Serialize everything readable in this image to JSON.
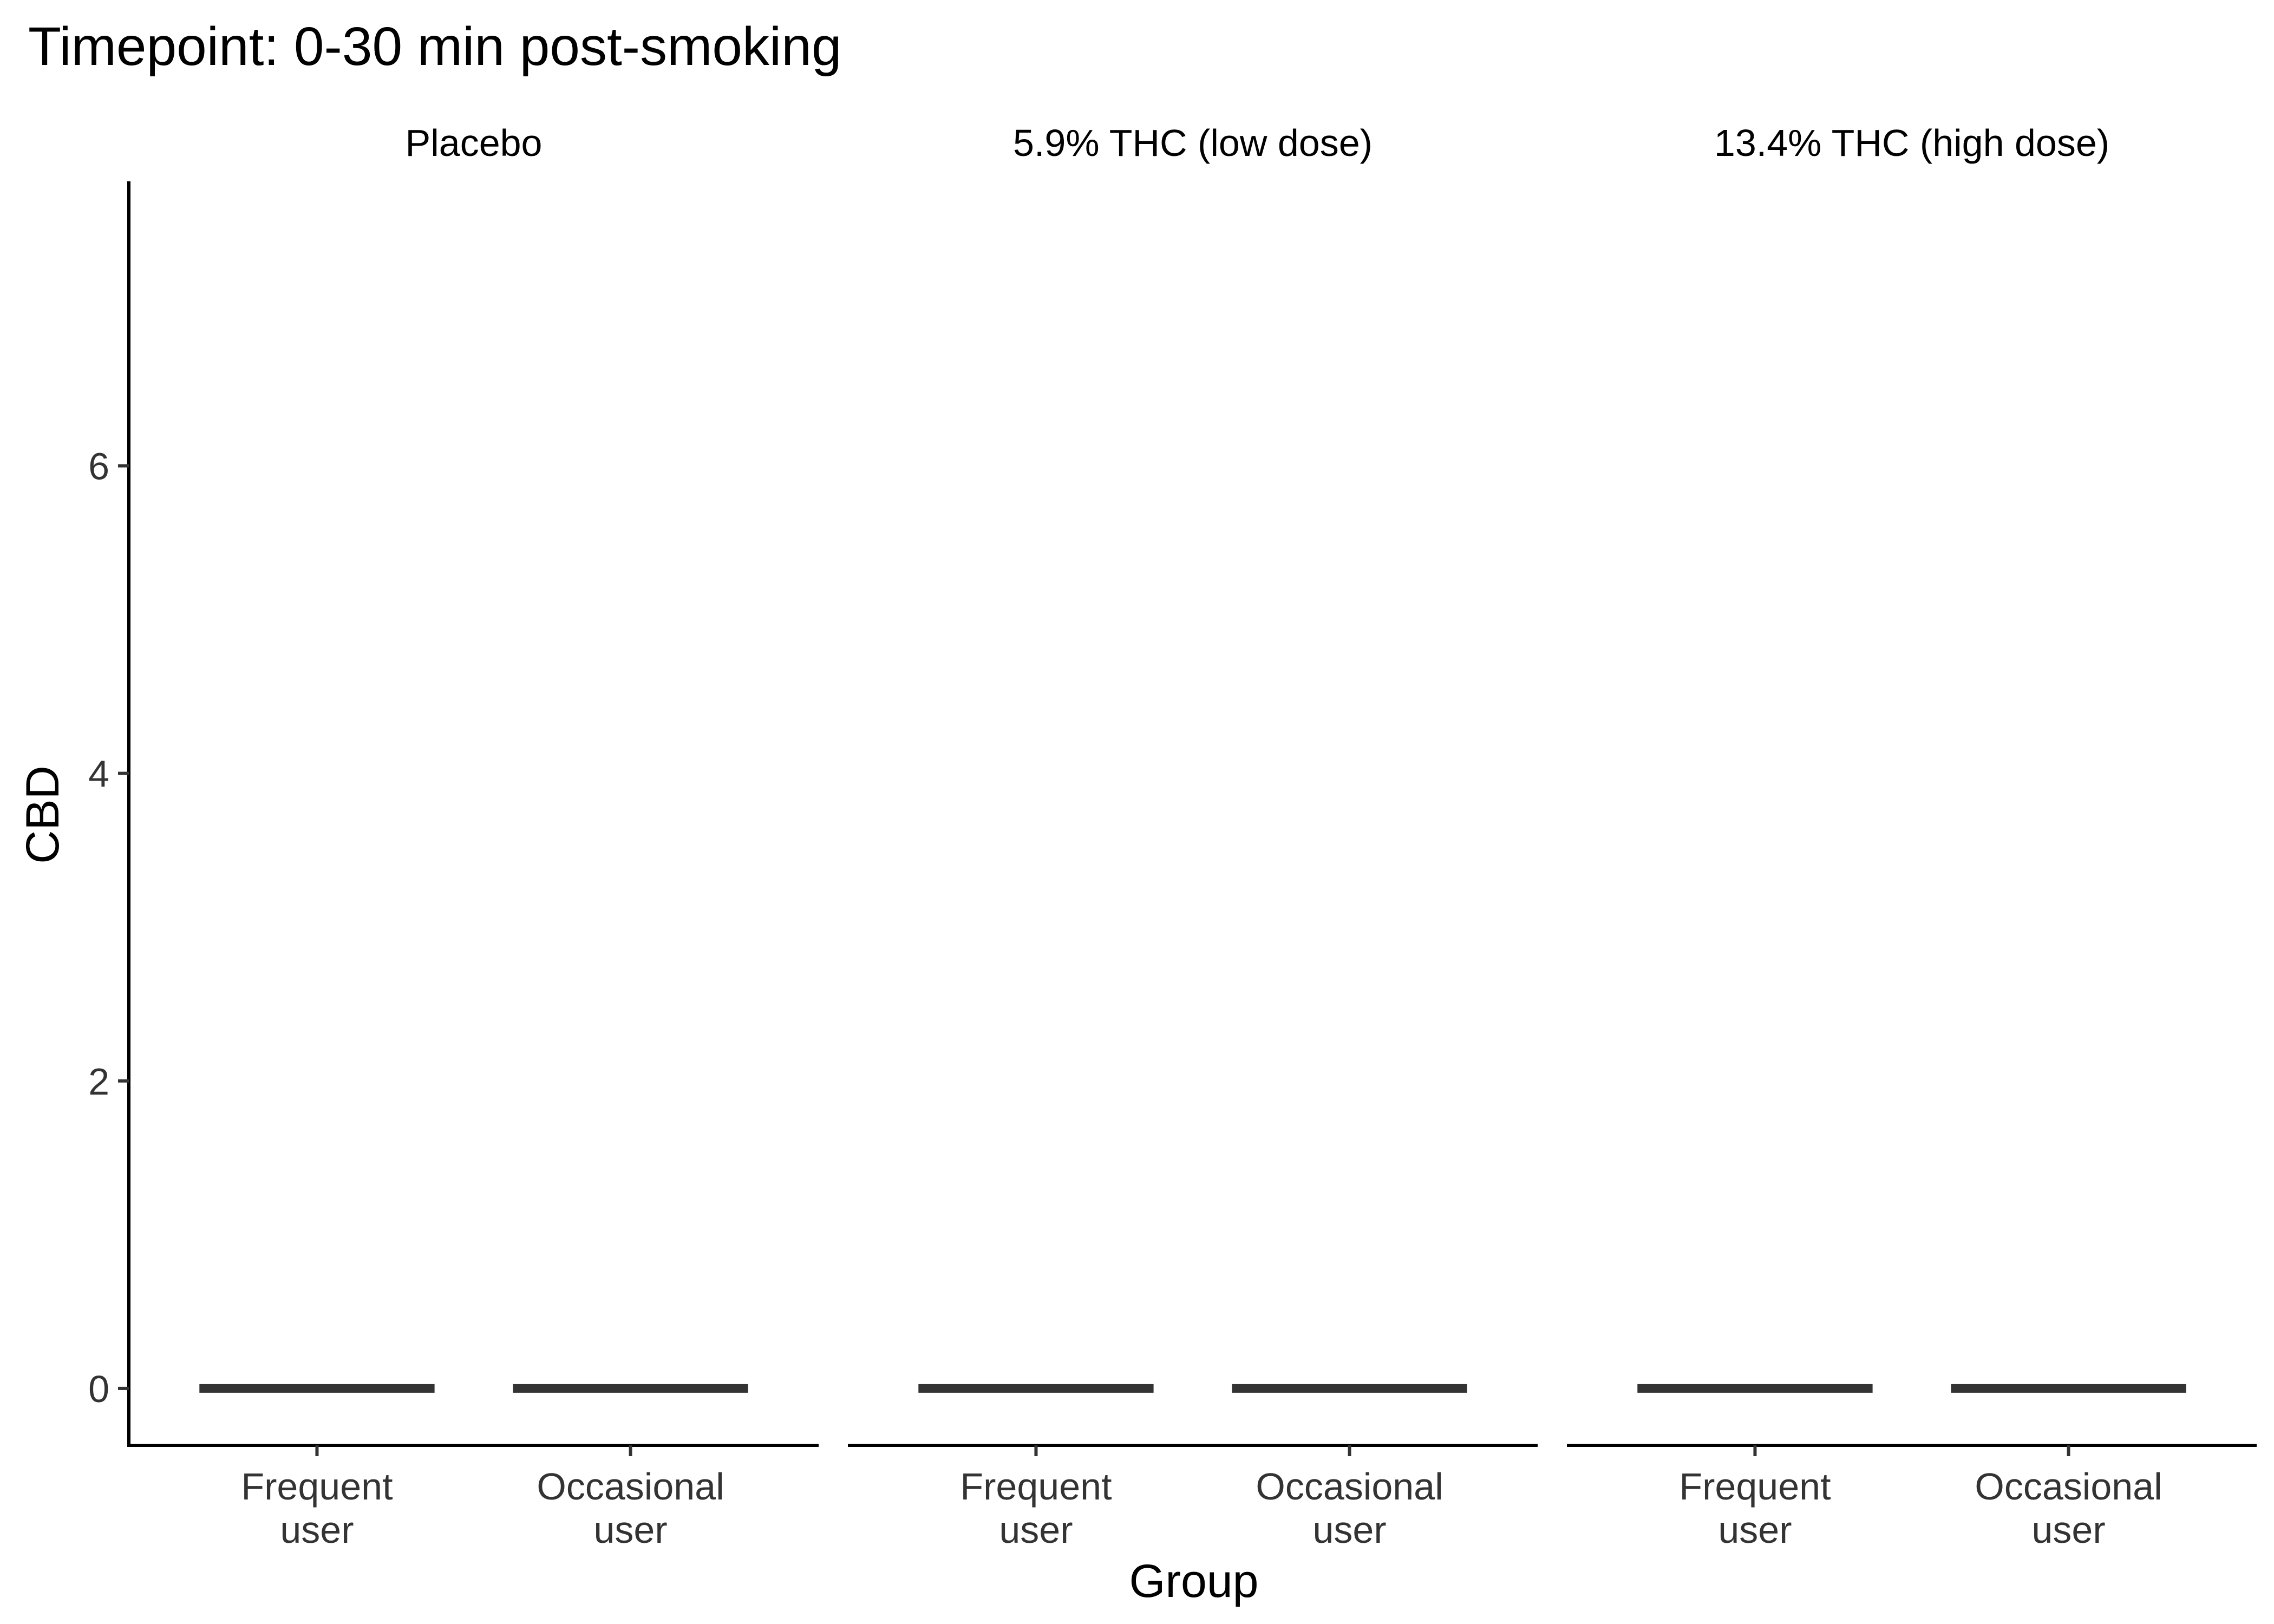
{
  "chart_data": {
    "type": "boxplot",
    "title": "Timepoint: 0-30 min post-smoking",
    "xlabel": "Group",
    "ylabel": "CBD",
    "ylim": [
      -0.37,
      7.85
    ],
    "yticks": [
      0,
      2,
      4,
      6
    ],
    "grid": false,
    "legend": "none",
    "categories": [
      "Frequent\nuser",
      "Occasional\nuser"
    ],
    "panels": [
      {
        "label": "Placebo",
        "boxes": [
          {
            "category": "Frequent\nuser",
            "min": 0,
            "q1": 0,
            "median": 0,
            "q3": 0,
            "max": 0
          },
          {
            "category": "Occasional\nuser",
            "min": 0,
            "q1": 0,
            "median": 0,
            "q3": 0,
            "max": 0
          }
        ]
      },
      {
        "label": "5.9% THC (low dose)",
        "boxes": [
          {
            "category": "Frequent\nuser",
            "min": 0,
            "q1": 0,
            "median": 0,
            "q3": 0,
            "max": 0
          },
          {
            "category": "Occasional\nuser",
            "min": 0,
            "q1": 0,
            "median": 0,
            "q3": 0,
            "max": 0
          }
        ]
      },
      {
        "label": "13.4% THC (high dose)",
        "boxes": [
          {
            "category": "Frequent\nuser",
            "min": 0,
            "q1": 0,
            "median": 0,
            "q3": 0,
            "max": 0
          },
          {
            "category": "Occasional\nuser",
            "min": 0,
            "q1": 0,
            "median": 0,
            "q3": 0,
            "max": 0
          }
        ]
      }
    ],
    "colors": {
      "box": "#333333",
      "axis": "#000000",
      "text": "#333333"
    }
  }
}
